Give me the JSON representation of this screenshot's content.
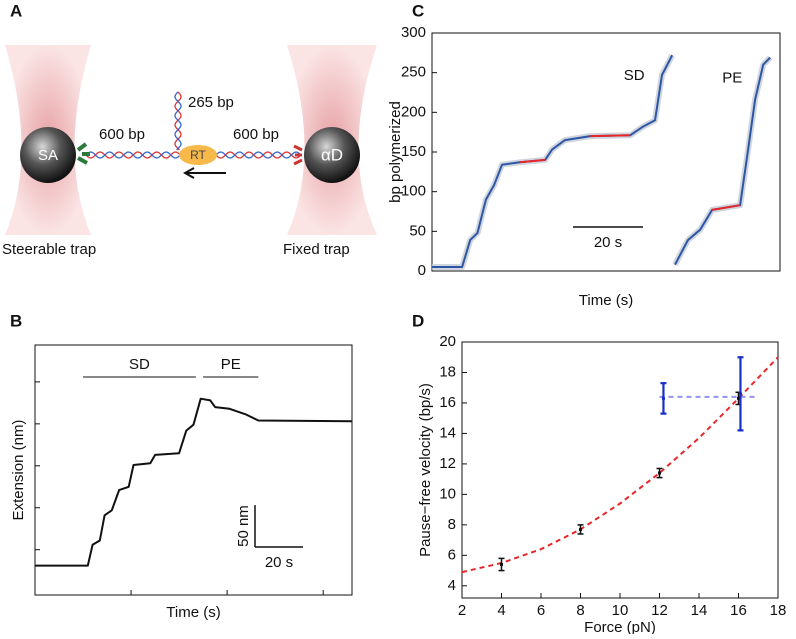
{
  "diagram": {
    "label": "A",
    "left_bead": "SA",
    "right_bead": "αD",
    "left_dna": "600 bp",
    "branch_dna": "265 bp",
    "right_dna": "600 bp",
    "enzyme": "RT",
    "left_trap": "Steerable trap",
    "right_trap": "Fixed trap"
  },
  "chart_data": [
    {
      "type": "line",
      "label": "B",
      "xlabel": "Time (s)",
      "ylabel": "Extension (nm)",
      "xlim": [
        0,
        132
      ],
      "ylim": [
        -4,
        294
      ],
      "xticks": [
        40,
        80,
        120
      ],
      "yticks": [
        50,
        100,
        150,
        200,
        250
      ],
      "tick_labels": false,
      "noise_color": "#b9c8d6",
      "series": [
        {
          "color": "#111111",
          "x": [
            0,
            22,
            24,
            27,
            29,
            32,
            35,
            39,
            41,
            48,
            50,
            60,
            63,
            66,
            69,
            73,
            75,
            81,
            88,
            93,
            132
          ],
          "values": [
            31,
            31,
            56,
            61,
            91,
            97,
            121,
            125,
            151,
            153,
            163,
            165,
            192,
            199,
            230,
            228,
            220,
            218,
            211,
            204,
            203
          ]
        }
      ],
      "segments": [
        {
          "label": "SD",
          "x": [
            20,
            67
          ]
        },
        {
          "label": "PE",
          "x": [
            70,
            93
          ]
        }
      ],
      "scale_bar": {
        "x": 20,
        "x_label": "20 s",
        "y": 50,
        "y_label": "50 nm"
      }
    },
    {
      "type": "line",
      "label": "C",
      "xlabel": "Time (s)",
      "ylabel": "bp polymerized",
      "xlim": [
        0,
        99.4
      ],
      "ylim": [
        0,
        300
      ],
      "yticks": [
        0,
        50,
        100,
        150,
        200,
        250,
        300
      ],
      "noise_color": "#c4ccd4",
      "series": [
        {
          "name": "SD",
          "color": "#2f55a6",
          "x": [
            0,
            8.6,
            10.9,
            13,
            15.4,
            17.7,
            20,
            25.1,
            32.3,
            34.3,
            38,
            45.2,
            56.6,
            60.3,
            63.7,
            65.7,
            68.6
          ],
          "values": [
            5,
            5,
            39,
            48,
            90,
            108,
            134,
            137,
            140,
            153,
            165,
            170,
            171,
            182,
            190,
            247,
            272
          ]
        },
        {
          "name": "PE",
          "color": "#2f55a6",
          "x": [
            69.4,
            73.1,
            76.6,
            80,
            88,
            90.3,
            92.3,
            94.6,
            96.6
          ],
          "values": [
            8,
            39,
            52,
            77,
            83,
            153,
            216,
            260,
            269
          ]
        },
        {
          "color": "#e8262a",
          "x": [
            25.1,
            32.3,
            null,
            45.2,
            56.6,
            null,
            80,
            88
          ],
          "values": [
            137,
            140,
            null,
            170,
            171,
            null,
            77,
            83
          ]
        }
      ],
      "scale_bar": {
        "x": 20,
        "x_label": "20 s"
      }
    },
    {
      "type": "scatter",
      "label": "D",
      "xlabel": "Force (pN)",
      "ylabel": "Pause−free velocity (bp/s)",
      "xlim": [
        2,
        18
      ],
      "ylim": [
        3.2,
        20
      ],
      "xticks": [
        2,
        4,
        6,
        8,
        10,
        12,
        14,
        16,
        18
      ],
      "yticks": [
        4,
        6,
        8,
        10,
        12,
        14,
        16,
        18,
        20
      ],
      "series": [
        {
          "mode": "line",
          "dashed": true,
          "color": "#e8262a",
          "x": [
            2,
            4,
            6,
            8,
            10,
            12,
            14,
            16,
            18
          ],
          "values": [
            4.9,
            5.5,
            6.4,
            7.7,
            9.4,
            11.4,
            13.7,
            16.3,
            19.0
          ]
        },
        {
          "mode": "line",
          "dashed": true,
          "color": "#9393ee",
          "x": [
            12,
            17
          ],
          "values": [
            16.4,
            16.4
          ]
        },
        {
          "mode": "errorbar",
          "color": "#111111",
          "x": [
            4,
            8,
            12,
            16
          ],
          "values": [
            5.4,
            7.7,
            11.4,
            16.3
          ],
          "errors": [
            0.4,
            0.3,
            0.3,
            0.4
          ]
        },
        {
          "mode": "errorbar",
          "color": "#1a2fc8",
          "x": [
            12.2,
            16.1
          ],
          "values": [
            16.3,
            16.6
          ],
          "errors": [
            1.0,
            2.4
          ]
        }
      ]
    }
  ]
}
